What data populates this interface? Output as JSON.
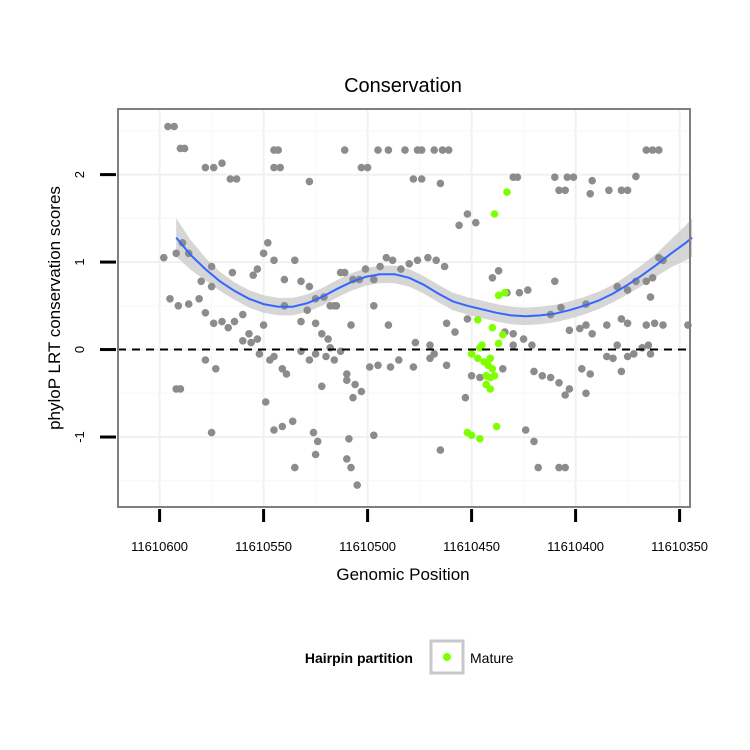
{
  "chart_data": {
    "type": "scatter",
    "title": "Conservation",
    "xlabel": "Genomic Position",
    "ylabel": "phyloP LRT conservation scores",
    "x_reversed": true,
    "xlim": [
      11610620,
      11610345
    ],
    "ylim": [
      -1.8,
      2.75
    ],
    "x_ticks": [
      11610600,
      11610550,
      11610500,
      11610450,
      11610400,
      11610350
    ],
    "x_tick_labels": [
      "11610600",
      "11610550",
      "11610500",
      "11610450",
      "11610400",
      "11610350"
    ],
    "y_ticks": [
      -1,
      0,
      1,
      2
    ],
    "y_tick_labels": [
      "-1",
      "0",
      "1",
      "2"
    ],
    "grid": true,
    "reference_line": {
      "y": 0,
      "style": "dashed"
    },
    "legend": {
      "title": "Hairpin partition",
      "entries": [
        "Mature"
      ],
      "position": "bottom"
    },
    "colors": {
      "other": "#8c8c8c",
      "mature": "#7fff00",
      "smooth": "#3366ff",
      "band": "#cccccc",
      "panel_border": "#7f7f7f",
      "grid": "#f0f0f0"
    },
    "series": [
      {
        "points": [
          [
            11610596,
            2.55
          ],
          [
            11610593,
            2.55
          ],
          [
            11610590,
            2.3
          ],
          [
            11610588,
            2.3
          ],
          [
            11610578,
            2.08
          ],
          [
            11610574,
            2.08
          ],
          [
            11610570,
            2.13
          ],
          [
            11610566,
            1.95
          ],
          [
            11610563,
            1.95
          ],
          [
            11610545,
            2.28
          ],
          [
            11610543,
            2.28
          ],
          [
            11610545,
            2.08
          ],
          [
            11610542,
            2.08
          ],
          [
            11610528,
            1.92
          ],
          [
            11610511,
            2.28
          ],
          [
            11610503,
            2.08
          ],
          [
            11610500,
            2.08
          ],
          [
            11610495,
            2.28
          ],
          [
            11610490,
            2.28
          ],
          [
            11610482,
            2.28
          ],
          [
            11610476,
            2.28
          ],
          [
            11610474,
            2.28
          ],
          [
            11610468,
            2.28
          ],
          [
            11610464,
            2.28
          ],
          [
            11610461,
            2.28
          ],
          [
            11610478,
            1.95
          ],
          [
            11610474,
            1.95
          ],
          [
            11610465,
            1.9
          ],
          [
            11610430,
            1.97
          ],
          [
            11610428,
            1.97
          ],
          [
            11610410,
            1.97
          ],
          [
            11610404,
            1.97
          ],
          [
            11610401,
            1.97
          ],
          [
            11610408,
            1.82
          ],
          [
            11610405,
            1.82
          ],
          [
            11610392,
            1.93
          ],
          [
            11610393,
            1.78
          ],
          [
            11610384,
            1.82
          ],
          [
            11610378,
            1.82
          ],
          [
            11610375,
            1.82
          ],
          [
            11610371,
            1.98
          ],
          [
            11610366,
            2.28
          ],
          [
            11610363,
            2.28
          ],
          [
            11610360,
            2.28
          ],
          [
            11610598,
            1.05
          ],
          [
            11610592,
            1.1
          ],
          [
            11610589,
            1.22
          ],
          [
            11610586,
            1.1
          ],
          [
            11610580,
            0.78
          ],
          [
            11610575,
            0.95
          ],
          [
            11610565,
            0.88
          ],
          [
            11610555,
            0.85
          ],
          [
            11610553,
            0.92
          ],
          [
            11610550,
            1.1
          ],
          [
            11610548,
            1.22
          ],
          [
            11610545,
            1.02
          ],
          [
            11610540,
            0.8
          ],
          [
            11610535,
            1.02
          ],
          [
            11610575,
            0.72
          ],
          [
            11610532,
            0.78
          ],
          [
            11610528,
            0.72
          ],
          [
            11610525,
            0.58
          ],
          [
            11610521,
            0.6
          ],
          [
            11610518,
            0.5
          ],
          [
            11610515,
            0.5
          ],
          [
            11610513,
            0.88
          ],
          [
            11610511,
            0.88
          ],
          [
            11610507,
            0.8
          ],
          [
            11610504,
            0.8
          ],
          [
            11610501,
            0.92
          ],
          [
            11610497,
            0.8
          ],
          [
            11610494,
            0.95
          ],
          [
            11610491,
            1.05
          ],
          [
            11610488,
            1.02
          ],
          [
            11610484,
            0.92
          ],
          [
            11610480,
            0.98
          ],
          [
            11610476,
            1.02
          ],
          [
            11610471,
            1.05
          ],
          [
            11610467,
            1.02
          ],
          [
            11610463,
            0.95
          ],
          [
            11610456,
            1.42
          ],
          [
            11610452,
            1.55
          ],
          [
            11610448,
            1.45
          ],
          [
            11610440,
            0.82
          ],
          [
            11610437,
            0.9
          ],
          [
            11610433,
            0.65
          ],
          [
            11610427,
            0.65
          ],
          [
            11610423,
            0.68
          ],
          [
            11610410,
            0.78
          ],
          [
            11610395,
            0.52
          ],
          [
            11610380,
            0.72
          ],
          [
            11610375,
            0.68
          ],
          [
            11610371,
            0.78
          ],
          [
            11610366,
            0.78
          ],
          [
            11610363,
            0.82
          ],
          [
            11610360,
            1.05
          ],
          [
            11610358,
            1.02
          ],
          [
            11610595,
            0.58
          ],
          [
            11610591,
            0.5
          ],
          [
            11610586,
            0.52
          ],
          [
            11610581,
            0.58
          ],
          [
            11610578,
            0.42
          ],
          [
            11610574,
            0.3
          ],
          [
            11610570,
            0.32
          ],
          [
            11610567,
            0.25
          ],
          [
            11610564,
            0.32
          ],
          [
            11610560,
            0.4
          ],
          [
            11610557,
            0.18
          ],
          [
            11610553,
            0.12
          ],
          [
            11610550,
            0.28
          ],
          [
            11610540,
            0.5
          ],
          [
            11610532,
            0.32
          ],
          [
            11610529,
            0.45
          ],
          [
            11610525,
            0.3
          ],
          [
            11610522,
            0.18
          ],
          [
            11610519,
            0.12
          ],
          [
            11610516,
            0.5
          ],
          [
            11610508,
            0.28
          ],
          [
            11610497,
            0.5
          ],
          [
            11610490,
            0.28
          ],
          [
            11610477,
            0.08
          ],
          [
            11610470,
            0.05
          ],
          [
            11610462,
            0.3
          ],
          [
            11610458,
            0.2
          ],
          [
            11610452,
            0.35
          ],
          [
            11610434,
            0.2
          ],
          [
            11610430,
            0.18
          ],
          [
            11610425,
            0.12
          ],
          [
            11610421,
            0.05
          ],
          [
            11610412,
            0.4
          ],
          [
            11610407,
            0.48
          ],
          [
            11610403,
            0.22
          ],
          [
            11610398,
            0.24
          ],
          [
            11610395,
            0.28
          ],
          [
            11610392,
            0.18
          ],
          [
            11610385,
            0.28
          ],
          [
            11610380,
            0.05
          ],
          [
            11610378,
            0.35
          ],
          [
            11610375,
            0.3
          ],
          [
            11610366,
            0.28
          ],
          [
            11610362,
            0.3
          ],
          [
            11610358,
            0.28
          ],
          [
            11610346,
            0.28
          ],
          [
            11610364,
            0.6
          ],
          [
            11610590,
            -0.45
          ],
          [
            11610578,
            -0.12
          ],
          [
            11610573,
            -0.22
          ],
          [
            11610560,
            0.1
          ],
          [
            11610556,
            0.08
          ],
          [
            11610552,
            -0.05
          ],
          [
            11610547,
            -0.12
          ],
          [
            11610545,
            -0.08
          ],
          [
            11610541,
            -0.22
          ],
          [
            11610539,
            -0.28
          ],
          [
            11610532,
            -0.02
          ],
          [
            11610528,
            -0.12
          ],
          [
            11610525,
            -0.05
          ],
          [
            11610520,
            -0.08
          ],
          [
            11610518,
            0.02
          ],
          [
            11610516,
            -0.12
          ],
          [
            11610513,
            -0.02
          ],
          [
            11610510,
            -0.28
          ],
          [
            11610506,
            -0.4
          ],
          [
            11610503,
            -0.48
          ],
          [
            11610499,
            -0.2
          ],
          [
            11610495,
            -0.18
          ],
          [
            11610489,
            -0.2
          ],
          [
            11610485,
            -0.12
          ],
          [
            11610478,
            -0.2
          ],
          [
            11610470,
            -0.1
          ],
          [
            11610468,
            -0.05
          ],
          [
            11610462,
            -0.18
          ],
          [
            11610453,
            -0.55
          ],
          [
            11610450,
            -0.3
          ],
          [
            11610446,
            -0.32
          ],
          [
            11610435,
            -0.22
          ],
          [
            11610430,
            0.05
          ],
          [
            11610420,
            -0.25
          ],
          [
            11610416,
            -0.3
          ],
          [
            11610412,
            -0.32
          ],
          [
            11610408,
            -0.38
          ],
          [
            11610405,
            -0.52
          ],
          [
            11610403,
            -0.45
          ],
          [
            11610397,
            -0.22
          ],
          [
            11610393,
            -0.28
          ],
          [
            11610385,
            -0.08
          ],
          [
            11610382,
            -0.1
          ],
          [
            11610378,
            -0.25
          ],
          [
            11610375,
            -0.08
          ],
          [
            11610372,
            -0.05
          ],
          [
            11610368,
            0.02
          ],
          [
            11610365,
            0.05
          ],
          [
            11610364,
            -0.05
          ],
          [
            11610592,
            -0.45
          ],
          [
            11610549,
            -0.6
          ],
          [
            11610545,
            -0.92
          ],
          [
            11610541,
            -0.88
          ],
          [
            11610536,
            -0.82
          ],
          [
            11610526,
            -0.95
          ],
          [
            11610524,
            -1.05
          ],
          [
            11610522,
            -0.42
          ],
          [
            11610510,
            -0.35
          ],
          [
            11610507,
            -0.55
          ],
          [
            11610509,
            -1.02
          ],
          [
            11610497,
            -0.98
          ],
          [
            11610535,
            -1.35
          ],
          [
            11610525,
            -1.2
          ],
          [
            11610510,
            -1.25
          ],
          [
            11610508,
            -1.35
          ],
          [
            11610505,
            -1.55
          ],
          [
            11610465,
            -1.15
          ],
          [
            11610424,
            -0.92
          ],
          [
            11610420,
            -1.05
          ],
          [
            11610418,
            -1.35
          ],
          [
            11610408,
            -1.35
          ],
          [
            11610405,
            -1.35
          ],
          [
            11610395,
            -0.5
          ],
          [
            11610575,
            -0.95
          ]
        ]
      },
      {
        "name": "Mature",
        "points": [
          [
            11610433,
            1.8
          ],
          [
            11610439,
            1.55
          ],
          [
            11610434,
            0.65
          ],
          [
            11610437,
            0.62
          ],
          [
            11610447,
            0.34
          ],
          [
            11610435,
            0.17
          ],
          [
            11610437,
            0.07
          ],
          [
            11610441,
            -0.1
          ],
          [
            11610445,
            0.05
          ],
          [
            11610446,
            0.02
          ],
          [
            11610442,
            -0.18
          ],
          [
            11610440,
            -0.22
          ],
          [
            11610444,
            -0.14
          ],
          [
            11610447,
            -0.1
          ],
          [
            11610450,
            -0.05
          ],
          [
            11610443,
            -0.3
          ],
          [
            11610441,
            -0.32
          ],
          [
            11610439,
            -0.3
          ],
          [
            11610443,
            -0.4
          ],
          [
            11610441,
            -0.45
          ],
          [
            11610452,
            -0.95
          ],
          [
            11610450,
            -0.98
          ],
          [
            11610446,
            -1.02
          ],
          [
            11610438,
            -0.88
          ],
          [
            11610440,
            0.25
          ]
        ]
      }
    ],
    "smooth": {
      "x": [
        11610592,
        11610585,
        11610578,
        11610571,
        11610564,
        11610557,
        11610550,
        11610543,
        11610536,
        11610529,
        11610522,
        11610515,
        11610508,
        11610501,
        11610494,
        11610487,
        11610480,
        11610473,
        11610466,
        11610459,
        11610452,
        11610445,
        11610438,
        11610431,
        11610424,
        11610417,
        11610410,
        11610403,
        11610396,
        11610389,
        11610382,
        11610375,
        11610368,
        11610361,
        11610354,
        11610347,
        11610344
      ],
      "y": [
        1.28,
        1.08,
        0.92,
        0.78,
        0.67,
        0.58,
        0.52,
        0.49,
        0.49,
        0.53,
        0.6,
        0.69,
        0.77,
        0.83,
        0.86,
        0.86,
        0.82,
        0.74,
        0.64,
        0.55,
        0.5,
        0.46,
        0.42,
        0.39,
        0.38,
        0.39,
        0.41,
        0.45,
        0.5,
        0.56,
        0.64,
        0.74,
        0.85,
        0.97,
        1.1,
        1.22,
        1.28
      ],
      "band": [
        0.22,
        0.17,
        0.13,
        0.11,
        0.1,
        0.1,
        0.1,
        0.1,
        0.1,
        0.1,
        0.1,
        0.1,
        0.1,
        0.1,
        0.1,
        0.1,
        0.1,
        0.1,
        0.1,
        0.1,
        0.1,
        0.1,
        0.1,
        0.1,
        0.1,
        0.1,
        0.1,
        0.1,
        0.1,
        0.1,
        0.1,
        0.11,
        0.12,
        0.13,
        0.16,
        0.2,
        0.22
      ]
    }
  }
}
